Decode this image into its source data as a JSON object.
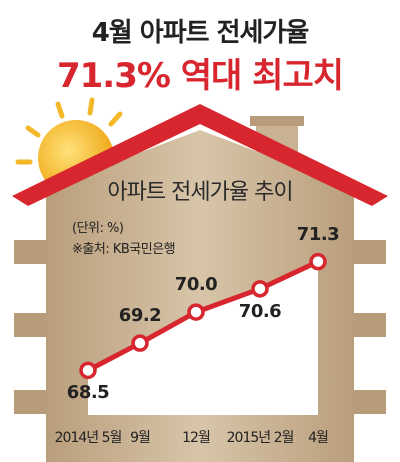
{
  "headline": {
    "line1": "4월 아파트 전세가율",
    "line2": "71.3% 역대 최고치"
  },
  "chart_data": {
    "type": "line",
    "title": "아파트 전세가율 추이",
    "unit_note": "(단위: %)",
    "source_note": "※출처: KB국민은행",
    "categories": [
      "2014년 5월",
      "9월",
      "12월",
      "2015년 2월",
      "4월"
    ],
    "values": [
      68.5,
      69.2,
      70.0,
      70.6,
      71.3
    ],
    "data_labels": [
      "68.5",
      "69.2",
      "70.0",
      "70.6",
      "71.3"
    ],
    "ylim": [
      68.2,
      71.6
    ],
    "grid": false,
    "line_color": "#d8262f"
  },
  "colors": {
    "accent": "#d8262f",
    "roof": "#d8262f",
    "house_wall": "#cdb89a",
    "chart_fill": "#ffffff",
    "sun": "#f3b51d"
  },
  "icons": [
    "sun-icon",
    "house-illustration"
  ]
}
